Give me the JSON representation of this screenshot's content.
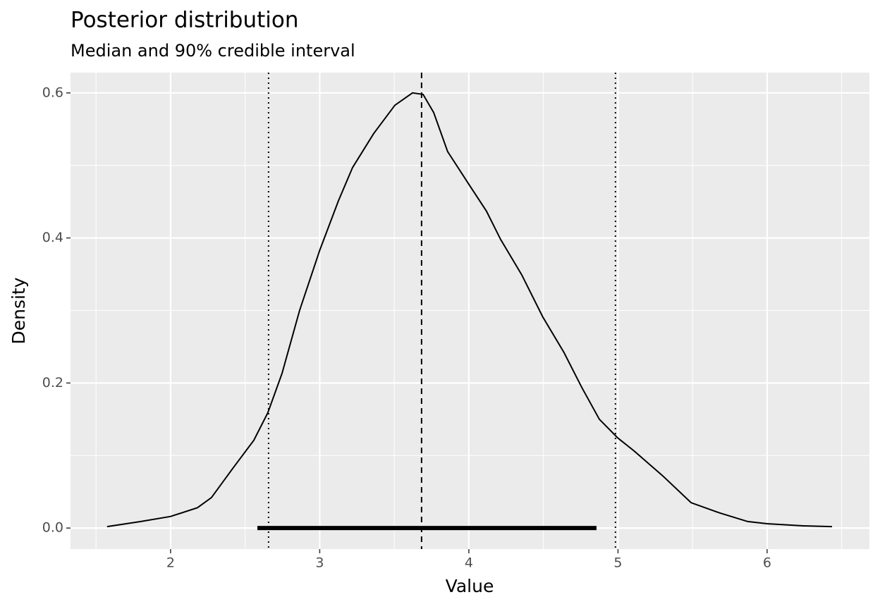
{
  "chart_data": {
    "type": "density",
    "title": "Posterior distribution",
    "subtitle": "Median and 90% credible interval",
    "x_label": "Value",
    "y_label": "Density",
    "x": [
      1.574,
      1.8,
      2.0,
      2.18,
      2.274,
      2.416,
      2.558,
      2.652,
      2.747,
      2.865,
      3.0,
      3.125,
      3.22,
      3.362,
      3.504,
      3.622,
      3.693,
      3.764,
      3.858,
      4.0,
      4.118,
      4.213,
      4.355,
      4.496,
      4.638,
      4.757,
      4.875,
      5.0,
      5.11,
      5.3,
      5.49,
      5.68,
      5.87,
      6.0,
      6.25,
      6.435
    ],
    "y": [
      0.002,
      0.009,
      0.016,
      0.028,
      0.042,
      0.082,
      0.121,
      0.159,
      0.213,
      0.3,
      0.383,
      0.451,
      0.497,
      0.544,
      0.583,
      0.6,
      0.598,
      0.573,
      0.519,
      0.474,
      0.437,
      0.398,
      0.349,
      0.291,
      0.242,
      0.194,
      0.15,
      0.124,
      0.106,
      0.072,
      0.035,
      0.021,
      0.009,
      0.006,
      0.003,
      0.002
    ],
    "color": "#000000",
    "median": 3.683,
    "interval_lines": [
      2.657,
      4.983
    ],
    "interval_bar": [
      2.582,
      4.856
    ],
    "xlim": [
      1.329,
      6.686
    ],
    "ylim": [
      -0.029,
      0.628
    ],
    "xticks": [
      2,
      3,
      4,
      5,
      6
    ],
    "yticks": [
      {
        "value": 0,
        "label": "0.0"
      },
      0.2,
      0.4,
      0.6
    ],
    "x_minor_breaks": [
      1.5,
      2.5,
      3.5,
      4.5,
      5.5,
      6.5
    ],
    "y_minor_breaks": [
      0.1,
      0.3,
      0.5
    ],
    "grid": true
  }
}
